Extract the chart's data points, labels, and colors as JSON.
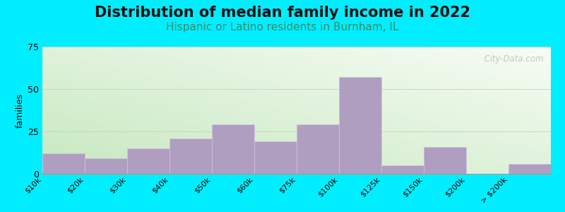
{
  "title": "Distribution of median family income in 2022",
  "subtitle": "Hispanic or Latino residents in Burnham, IL",
  "categories": [
    "$10k",
    "$20k",
    "$30k",
    "$40k",
    "$50k",
    "$60k",
    "$75k",
    "$100k",
    "$125k",
    "$150k",
    "$200k",
    "> $200k"
  ],
  "values": [
    12,
    9,
    15,
    21,
    29,
    19,
    29,
    57,
    5,
    16,
    0,
    6
  ],
  "bar_color": "#b09ec0",
  "bar_edge_color": "#d0c0e0",
  "ylabel": "families",
  "ylim": [
    0,
    75
  ],
  "yticks": [
    0,
    25,
    50,
    75
  ],
  "outer_bg": "#00eeff",
  "title_fontsize": 15,
  "subtitle_fontsize": 11,
  "subtitle_color": "#3a8a6a",
  "watermark_text": "  City-Data.com",
  "grid_color": "#cccccc",
  "bg_left_bottom": "#c8e8c0",
  "bg_right_top": "#f8faf5"
}
